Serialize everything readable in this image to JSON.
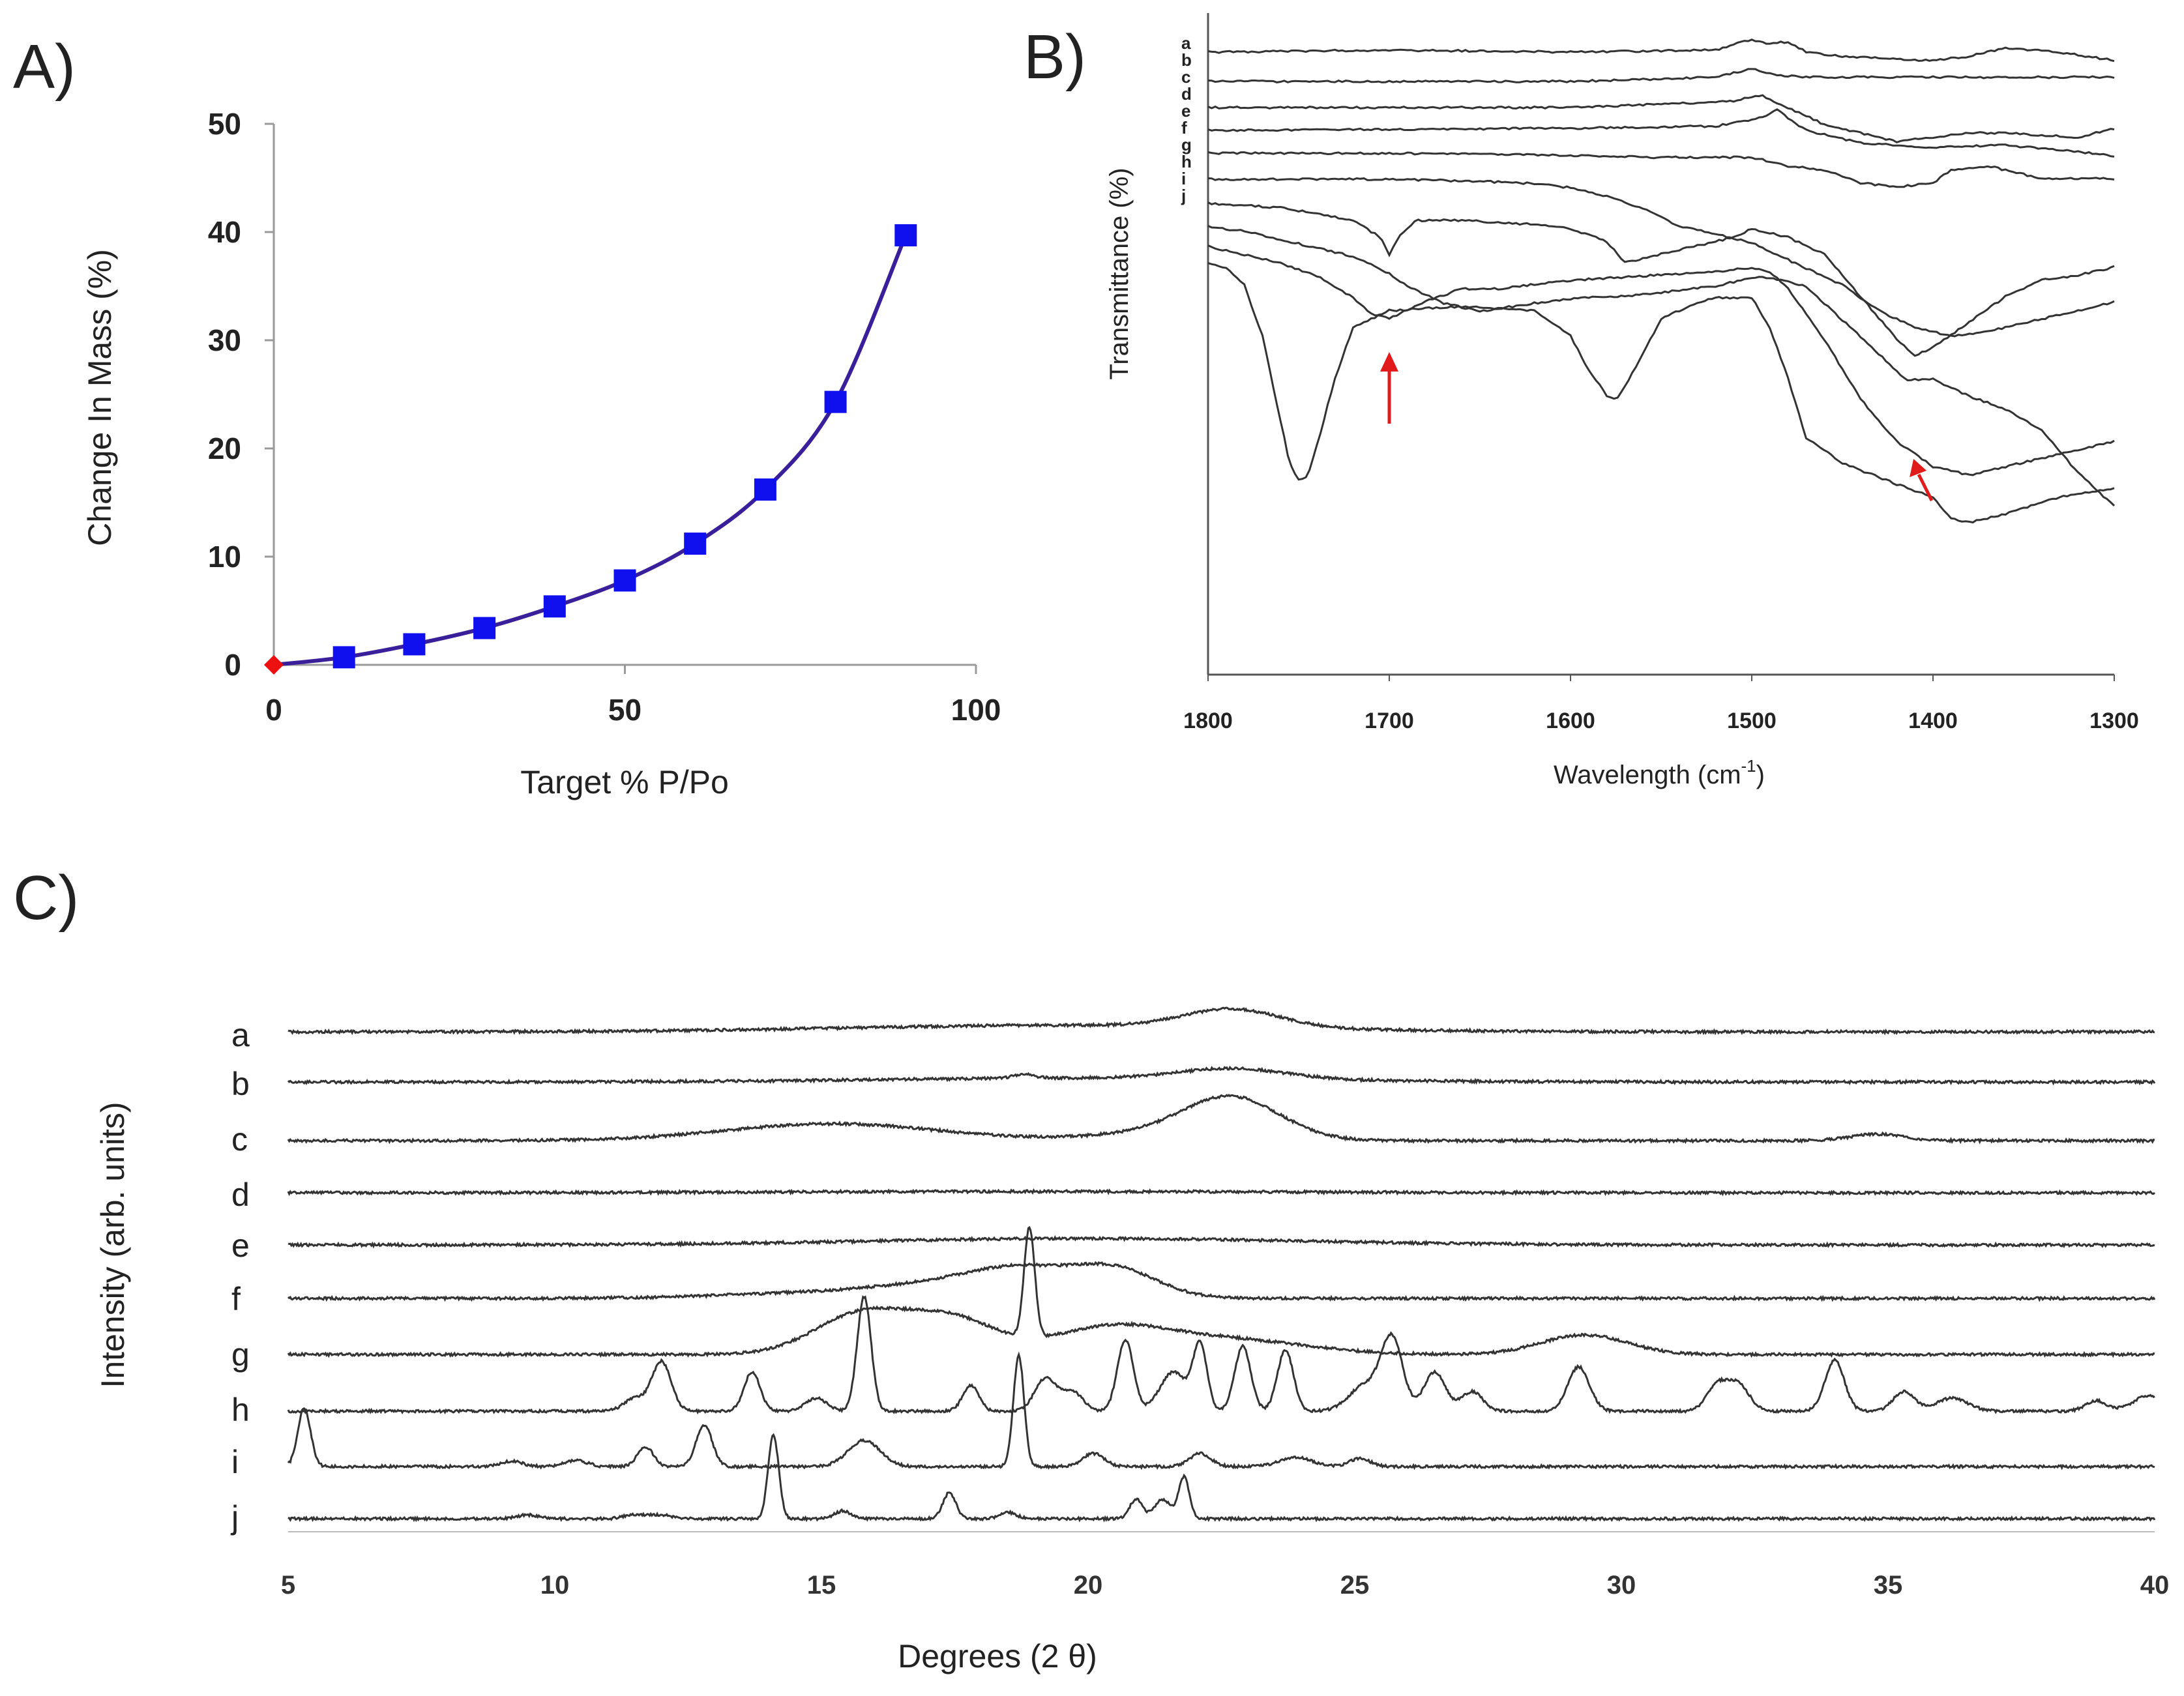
{
  "panels": {
    "A": {
      "label": "A)"
    },
    "B": {
      "label": "B)"
    },
    "C": {
      "label": "C)"
    }
  },
  "colors": {
    "line_a": "#3a1f9a",
    "marker_a": "#1010ee",
    "origin_marker": "#ee1111",
    "trace": "#333333",
    "arrow": "#e11b1b"
  },
  "chart_data": [
    {
      "panel": "A",
      "type": "line",
      "xlabel": "Target % P/Po",
      "ylabel": "Change In Mass (%)",
      "xlim": [
        0,
        100
      ],
      "ylim": [
        0,
        50
      ],
      "xticks": [
        "0",
        "50",
        "100"
      ],
      "yticks": [
        "0",
        "10",
        "20",
        "30",
        "40",
        "50"
      ],
      "series": [
        {
          "x": [
            0,
            10,
            20,
            30,
            40,
            50,
            60,
            70,
            80,
            90
          ],
          "y": [
            0,
            0.7,
            1.9,
            3.4,
            5.4,
            7.8,
            11.2,
            16.2,
            24.3,
            39.7
          ]
        }
      ],
      "origin_marker": {
        "x": 0,
        "y": 0
      }
    },
    {
      "panel": "B",
      "type": "line",
      "xlabel": "Wavelength (cm-1)",
      "xlabel_main": "Wavelength (cm",
      "xlabel_sup": "-1",
      "xlabel_close": ")",
      "ylabel": "Transmittance (%)",
      "xlim": [
        1800,
        1300
      ],
      "xticks": [
        "1800",
        "1700",
        "1600",
        "1500",
        "1400",
        "1300"
      ],
      "trace_labels": [
        "a",
        "b",
        "c",
        "d",
        "e",
        "f",
        "g",
        "h",
        "i",
        "j"
      ],
      "arrows": [
        {
          "x": 1700
        },
        {
          "x": 1405
        }
      ],
      "series": [
        {
          "name": "a",
          "x": [
            1800,
            1700,
            1600,
            1520,
            1500,
            1490,
            1480,
            1470,
            1450,
            1400,
            1380,
            1360,
            1330,
            1300
          ],
          "y": [
            8,
            7.5,
            8,
            7.5,
            5,
            6,
            5.5,
            8,
            9,
            10,
            9,
            7,
            8,
            10
          ]
        },
        {
          "name": "b",
          "x": [
            1800,
            1600,
            1520,
            1500,
            1485,
            1470,
            1420,
            1360,
            1300
          ],
          "y": [
            14,
            14,
            13,
            11,
            12.5,
            13,
            13,
            13,
            13
          ]
        },
        {
          "name": "c",
          "x": [
            1800,
            1600,
            1510,
            1495,
            1480,
            1460,
            1420,
            1400,
            1380,
            1360,
            1320,
            1300
          ],
          "y": [
            18,
            18,
            16.5,
            15,
            18,
            22,
            26,
            25,
            24,
            24,
            25,
            23
          ]
        },
        {
          "name": "d",
          "x": [
            1800,
            1600,
            1520,
            1495,
            1485,
            1480,
            1470,
            1440,
            1400,
            1360,
            1320,
            1300
          ],
          "y": [
            21,
            20.5,
            20,
            18,
            16,
            18,
            21,
            24,
            25,
            24.5,
            26,
            27
          ]
        },
        {
          "name": "e",
          "x": [
            1800,
            1700,
            1600,
            1550,
            1520,
            1500,
            1480,
            1460,
            1440,
            1420,
            1400,
            1390,
            1370,
            1340,
            1310,
            1300
          ],
          "y": [
            24,
            24,
            24.5,
            25,
            25,
            25,
            27,
            28,
            31,
            32,
            31,
            28,
            27,
            30,
            30,
            30
          ]
        },
        {
          "name": "f",
          "x": [
            1800,
            1750,
            1700,
            1650,
            1620,
            1600,
            1580,
            1560,
            1540,
            1520,
            1500,
            1480,
            1450,
            1430,
            1410,
            1390,
            1370,
            1340,
            1300
          ],
          "y": [
            27,
            27,
            27,
            27.5,
            28,
            29,
            31,
            34,
            38,
            40,
            42,
            46,
            52,
            58,
            62,
            64,
            63,
            60,
            56
          ]
        },
        {
          "name": "g",
          "x": [
            1800,
            1760,
            1720,
            1705,
            1700,
            1695,
            1685,
            1660,
            1620,
            1600,
            1580,
            1570,
            1560,
            1530,
            1510,
            1500,
            1480,
            1460,
            1440,
            1420,
            1410,
            1400,
            1380,
            1360,
            1340,
            1320,
            1300
          ],
          "y": [
            30,
            31,
            34,
            38,
            42,
            38,
            34,
            34,
            35,
            36,
            39,
            44,
            43,
            40,
            38,
            36,
            38,
            42,
            52,
            62,
            66,
            64,
            58,
            52,
            48,
            47,
            45
          ]
        },
        {
          "name": "h",
          "x": [
            1800,
            1780,
            1760,
            1740,
            1720,
            1700,
            1690,
            1670,
            1650,
            1620,
            1600,
            1560,
            1520,
            1500,
            1490,
            1470,
            1450,
            1430,
            1415,
            1400,
            1390,
            1380,
            1360,
            1340,
            1320,
            1300
          ],
          "y": [
            32,
            33,
            35,
            37,
            39,
            43,
            46,
            50,
            52,
            50,
            49,
            48,
            46,
            44,
            44,
            46,
            54,
            62,
            68,
            68,
            70,
            72,
            75,
            80,
            90,
            98
          ]
        },
        {
          "name": "i",
          "x": [
            1800,
            1780,
            1760,
            1740,
            1720,
            1710,
            1700,
            1690,
            1680,
            1660,
            1650,
            1640,
            1620,
            1600,
            1560,
            1520,
            1500,
            1490,
            1480,
            1460,
            1440,
            1420,
            1400,
            1380,
            1360,
            1340,
            1320,
            1300
          ],
          "y": [
            34,
            36,
            38,
            41,
            46,
            50,
            51,
            49,
            47,
            44,
            44,
            44,
            43,
            42,
            41,
            40,
            39,
            40,
            44,
            56,
            70,
            80,
            86,
            88,
            86,
            84,
            82,
            80
          ]
        },
        {
          "name": "j",
          "x": [
            1800,
            1790,
            1780,
            1770,
            1760,
            1755,
            1750,
            1745,
            1740,
            1730,
            1720,
            1700,
            1660,
            1620,
            1600,
            1590,
            1580,
            1575,
            1570,
            1560,
            1550,
            1530,
            1520,
            1500,
            1490,
            1480,
            1470,
            1450,
            1420,
            1400,
            1390,
            1380,
            1360,
            1330,
            1300
          ],
          "y": [
            35,
            36,
            40,
            52,
            72,
            82,
            86,
            85,
            78,
            62,
            50,
            46,
            45,
            46,
            52,
            60,
            66,
            67,
            64,
            56,
            48,
            44,
            43,
            43,
            50,
            62,
            76,
            82,
            87,
            90,
            95,
            96,
            94,
            90,
            88
          ]
        }
      ]
    },
    {
      "panel": "C",
      "type": "line",
      "xlabel": "Degrees (2 θ)",
      "ylabel": "Intensity (arb. units)",
      "xlim": [
        5,
        40
      ],
      "xticks": [
        "5",
        "10",
        "15",
        "20",
        "25",
        "30",
        "35",
        "40"
      ],
      "trace_labels": [
        "a",
        "b",
        "c",
        "d",
        "e",
        "f",
        "g",
        "h",
        "i",
        "j"
      ],
      "series": [
        {
          "name": "a",
          "peaks": [
            [
              22.7,
              28,
              0.9
            ],
            [
              19.5,
              10,
              4.0
            ]
          ]
        },
        {
          "name": "b",
          "peaks": [
            [
              22.7,
              16,
              1.0
            ],
            [
              18.8,
              6,
              0.2
            ],
            [
              20,
              6,
              4
            ]
          ]
        },
        {
          "name": "c",
          "peaks": [
            [
              22.7,
              64,
              0.9
            ],
            [
              15.2,
              26,
              2.0
            ],
            [
              21.2,
              10,
              1.2
            ],
            [
              34.8,
              10,
              0.5
            ]
          ]
        },
        {
          "name": "d",
          "peaks": [
            [
              19.0,
              2,
              5.0
            ]
          ]
        },
        {
          "name": "e",
          "peaks": [
            [
              20.0,
              10,
              4.0
            ]
          ]
        },
        {
          "name": "f",
          "peaks": [
            [
              20.5,
              44,
              0.8
            ],
            [
              18.8,
              34,
              0.9
            ],
            [
              17.5,
              18,
              1.2
            ],
            [
              15.5,
              10,
              2.0
            ]
          ]
        },
        {
          "name": "g",
          "peaks": [
            [
              18.9,
              168,
              0.1
            ],
            [
              17.5,
              50,
              0.8
            ],
            [
              15.8,
              64,
              0.9
            ],
            [
              20.4,
              40,
              1.1
            ],
            [
              22.7,
              22,
              1.4
            ],
            [
              29.3,
              30,
              0.8
            ]
          ]
        },
        {
          "name": "h",
          "peaks": [
            [
              12.0,
              76,
              0.18
            ],
            [
              11.5,
              20,
              0.2
            ],
            [
              13.7,
              60,
              0.15
            ],
            [
              15.8,
              176,
              0.13
            ],
            [
              14.9,
              20,
              0.2
            ],
            [
              17.8,
              40,
              0.15
            ],
            [
              19.2,
              50,
              0.2
            ],
            [
              19.7,
              30,
              0.2
            ],
            [
              20.7,
              110,
              0.15
            ],
            [
              21.6,
              60,
              0.25
            ],
            [
              22.1,
              100,
              0.13
            ],
            [
              22.9,
              100,
              0.15
            ],
            [
              23.7,
              94,
              0.15
            ],
            [
              25.7,
              108,
              0.2
            ],
            [
              25.2,
              40,
              0.3
            ],
            [
              26.5,
              60,
              0.2
            ],
            [
              27.2,
              30,
              0.2
            ],
            [
              29.2,
              68,
              0.2
            ],
            [
              31.8,
              40,
              0.2
            ],
            [
              32.2,
              40,
              0.2
            ],
            [
              34.0,
              78,
              0.18
            ],
            [
              35.3,
              30,
              0.2
            ],
            [
              36.2,
              20,
              0.3
            ],
            [
              38.9,
              16,
              0.2
            ],
            [
              39.9,
              24,
              0.3
            ]
          ]
        },
        {
          "name": "i",
          "peaks": [
            [
              5.3,
              90,
              0.12
            ],
            [
              11.7,
              30,
              0.15
            ],
            [
              12.8,
              64,
              0.15
            ],
            [
              15.8,
              40,
              0.3
            ],
            [
              18.7,
              170,
              0.1
            ],
            [
              20.1,
              20,
              0.2
            ],
            [
              22.1,
              20,
              0.2
            ],
            [
              23.9,
              14,
              0.3
            ],
            [
              25.1,
              12,
              0.2
            ],
            [
              9.2,
              8,
              0.2
            ],
            [
              10.4,
              10,
              0.2
            ]
          ]
        },
        {
          "name": "j",
          "peaks": [
            [
              14.1,
              128,
              0.1
            ],
            [
              17.4,
              40,
              0.12
            ],
            [
              15.4,
              12,
              0.15
            ],
            [
              20.9,
              30,
              0.12
            ],
            [
              21.8,
              64,
              0.1
            ],
            [
              21.4,
              30,
              0.15
            ],
            [
              18.5,
              10,
              0.15
            ],
            [
              9.5,
              6,
              0.2
            ],
            [
              11.5,
              6,
              0.2
            ],
            [
              12,
              6,
              0.2
            ]
          ]
        }
      ]
    }
  ]
}
